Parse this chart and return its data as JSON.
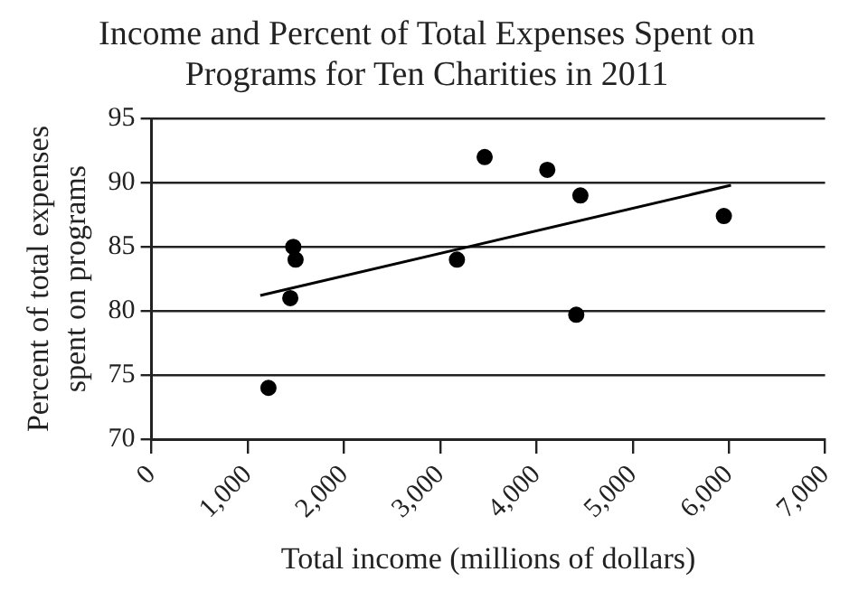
{
  "chart_data": {
    "type": "scatter",
    "title": "Income and Percent of Total Expenses Spent on Programs for Ten Charities in 2011",
    "xlabel": "Total income (millions of dollars)",
    "ylabel": "Percent of total expenses spent on programs",
    "xlim": [
      0,
      7000
    ],
    "xticks": [
      0,
      {
        "value": 1000,
        "label": "1,000"
      },
      {
        "value": 2000,
        "label": "2,000"
      },
      {
        "value": 3000,
        "label": "3,000"
      },
      {
        "value": 4000,
        "label": "4,000"
      },
      {
        "value": 5000,
        "label": "5,000"
      },
      {
        "value": 6000,
        "label": "6,000"
      },
      {
        "value": 7000,
        "label": "7,000"
      }
    ],
    "ylim": [
      70,
      95
    ],
    "yticks": [
      70,
      75,
      80,
      85,
      90,
      95
    ],
    "grid": "y",
    "marker": "circle",
    "legend": false,
    "series": [
      {
        "type": "scatter",
        "color": "#000000",
        "x": [
          1215,
          1442,
          1473,
          1497,
          3174,
          3462,
          4113,
          4457,
          4414,
          5948
        ],
        "values": [
          74,
          81,
          85,
          84,
          84,
          92,
          91,
          89,
          79.7,
          87.4
        ]
      },
      {
        "type": "line",
        "color": "#000000",
        "x": [
          1130,
          6022
        ],
        "values": [
          81.2,
          89.8
        ],
        "marker": "none"
      }
    ]
  }
}
